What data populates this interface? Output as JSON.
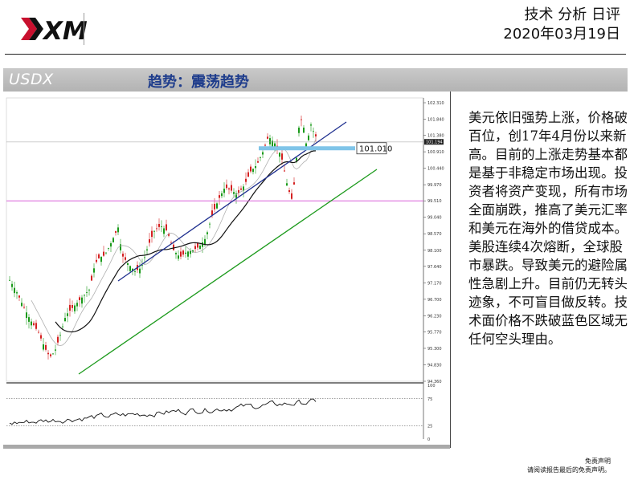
{
  "header": {
    "title": "技术 分析 日评",
    "date": "2020年03月19日"
  },
  "banner": {
    "symbol": "USDX",
    "trend": "趋势：震荡趋势"
  },
  "chart_data": {
    "type": "candlestick",
    "ylim": [
      94.36,
      102.31
    ],
    "price_ticks": [
      "102.310",
      "101.840",
      "101.380",
      "100.910",
      "100.440",
      "99.970",
      "99.510",
      "99.040",
      "98.570",
      "98.100",
      "97.640",
      "97.170",
      "96.700",
      "96.230",
      "95.770",
      "95.300",
      "94.830",
      "94.360"
    ],
    "current_price_tag": "101.194",
    "marked_level": {
      "label": "101.010",
      "value": 101.01
    },
    "pink_level": 99.51,
    "oscillator_ticks": [
      "100",
      "75",
      "25",
      "0"
    ],
    "oscillator_levels": [
      75,
      25
    ],
    "colors": {
      "up_candle": "#1a9a1a",
      "down_candle": "#d42020",
      "channel_top": "#1e2f8f",
      "support_line": "#1c9a1c",
      "highlight_band": "#7fc4e8",
      "pink_level": "#d860d8"
    }
  },
  "analysis_text": "美元依旧强势上涨，价格破百位，创17年4月份以来新高。目前的上涨走势基本都是基于非稳定市场出现。投资者将资产变现，所有市场全面崩跌，推高了美元汇率和美元在海外的借贷成本。美股连续4次熔断，全球股市暴跌。导致美元的避险属性急剧上升。目前仍无转头迹象，不可盲目做反转。技术面价格不跌破蓝色区域无任何空头理由。",
  "disclaimer": {
    "line1": "免责声明",
    "line2": "请阅读报告最后的免责声明。"
  },
  "logo": {
    "text": "XM"
  }
}
